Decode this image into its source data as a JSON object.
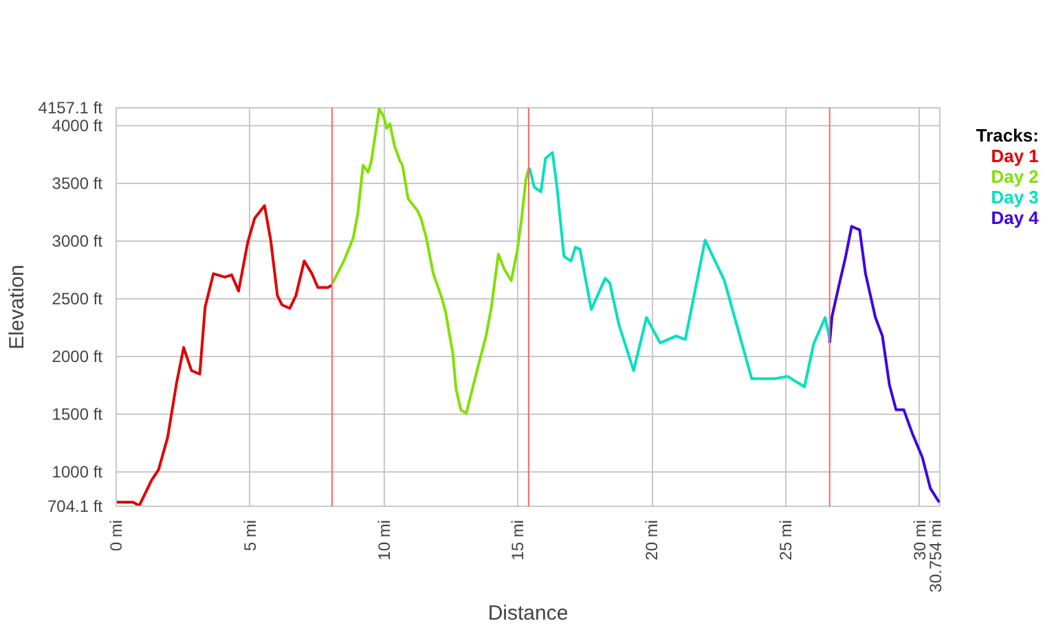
{
  "chart_data": {
    "type": "line",
    "xlabel": "Distance",
    "ylabel": "Elevation",
    "legend_title": "Tracks:",
    "grid": true,
    "xlim": [
      0,
      30.754
    ],
    "ylim": [
      704.1,
      4157.1
    ],
    "xticks": [
      {
        "value": 0,
        "label": "0 mi"
      },
      {
        "value": 5,
        "label": "5 mi"
      },
      {
        "value": 10,
        "label": "10 mi"
      },
      {
        "value": 15,
        "label": "15 mi"
      },
      {
        "value": 20,
        "label": "20 mi"
      },
      {
        "value": 25,
        "label": "25 mi"
      },
      {
        "value": 30,
        "label": "30 mi"
      },
      {
        "value": 30.754,
        "label": "30.754 mi"
      }
    ],
    "yticks": [
      {
        "value": 704.1,
        "label": "704.1 ft"
      },
      {
        "value": 1000,
        "label": "1000 ft"
      },
      {
        "value": 1500,
        "label": "1500 ft"
      },
      {
        "value": 2000,
        "label": "2000 ft"
      },
      {
        "value": 2500,
        "label": "2500 ft"
      },
      {
        "value": 3000,
        "label": "3000 ft"
      },
      {
        "value": 3500,
        "label": "3500 ft"
      },
      {
        "value": 4000,
        "label": "4000 ft"
      },
      {
        "value": 4157.1,
        "label": "4157.1 ft"
      }
    ],
    "ref_lines": [
      {
        "axis": "x",
        "value": 8.06,
        "color": "#ff6666"
      },
      {
        "axis": "x",
        "value": 15.4,
        "color": "#ff6666"
      },
      {
        "axis": "x",
        "value": 26.64,
        "color": "#ff6666"
      }
    ],
    "series": [
      {
        "name": "Day 1",
        "color": "#e00000",
        "x": [
          0,
          0.63,
          0.86,
          1.32,
          1.58,
          1.92,
          2.26,
          2.52,
          2.81,
          3.12,
          3.32,
          3.63,
          4.06,
          4.31,
          4.57,
          4.91,
          5.17,
          5.54,
          5.77,
          6.02,
          6.19,
          6.48,
          6.71,
          7.02,
          7.31,
          7.53,
          7.91,
          8.04
        ],
        "values": [
          740,
          740,
          710,
          930,
          1020,
          1300,
          1780,
          2080,
          1880,
          1850,
          2430,
          2720,
          2690,
          2710,
          2570,
          2990,
          3200,
          3310,
          3010,
          2530,
          2450,
          2420,
          2530,
          2830,
          2720,
          2600,
          2600,
          2620
        ]
      },
      {
        "name": "Day 2",
        "color": "#80e000",
        "x": [
          8.08,
          8.5,
          8.85,
          9.02,
          9.22,
          9.41,
          9.53,
          9.82,
          9.99,
          10.1,
          10.22,
          10.39,
          10.59,
          10.69,
          10.9,
          11.24,
          11.38,
          11.58,
          11.84,
          12.13,
          12.3,
          12.44,
          12.57,
          12.69,
          12.87,
          13.07,
          13.3,
          13.55,
          13.81,
          14.01,
          14.27,
          14.49,
          14.75,
          14.97,
          15.14,
          15.3,
          15.4
        ],
        "values": [
          2640,
          2830,
          3030,
          3240,
          3660,
          3600,
          3700,
          4150,
          4080,
          3980,
          4020,
          3830,
          3700,
          3660,
          3370,
          3270,
          3200,
          3030,
          2720,
          2530,
          2390,
          2200,
          2030,
          1720,
          1540,
          1510,
          1720,
          1950,
          2180,
          2430,
          2890,
          2760,
          2660,
          2910,
          3200,
          3540,
          3630
        ]
      },
      {
        "name": "Day 3",
        "color": "#00e0c0",
        "x": [
          15.43,
          15.61,
          15.86,
          16.03,
          16.29,
          16.46,
          16.72,
          16.98,
          17.15,
          17.32,
          17.74,
          18.26,
          18.43,
          18.77,
          19.32,
          19.8,
          20.31,
          20.91,
          21.25,
          21.99,
          22.71,
          23.73,
          24.59,
          25.07,
          25.7,
          26.04,
          26.47,
          26.64
        ],
        "values": [
          3640,
          3470,
          3430,
          3720,
          3770,
          3470,
          2870,
          2830,
          2950,
          2930,
          2410,
          2680,
          2640,
          2280,
          1880,
          2340,
          2120,
          2180,
          2150,
          3010,
          2660,
          1810,
          1810,
          1830,
          1740,
          2110,
          2340,
          2160
        ]
      },
      {
        "name": "Day 4",
        "color": "#4000e0",
        "x": [
          26.64,
          26.73,
          26.99,
          27.24,
          27.46,
          27.76,
          27.98,
          28.35,
          28.61,
          28.87,
          29.12,
          29.41,
          29.72,
          30.1,
          30.4,
          30.7,
          30.75
        ],
        "values": [
          2120,
          2350,
          2620,
          2870,
          3130,
          3100,
          2720,
          2340,
          2180,
          1760,
          1540,
          1540,
          1340,
          1130,
          860,
          750,
          740
        ]
      }
    ]
  }
}
